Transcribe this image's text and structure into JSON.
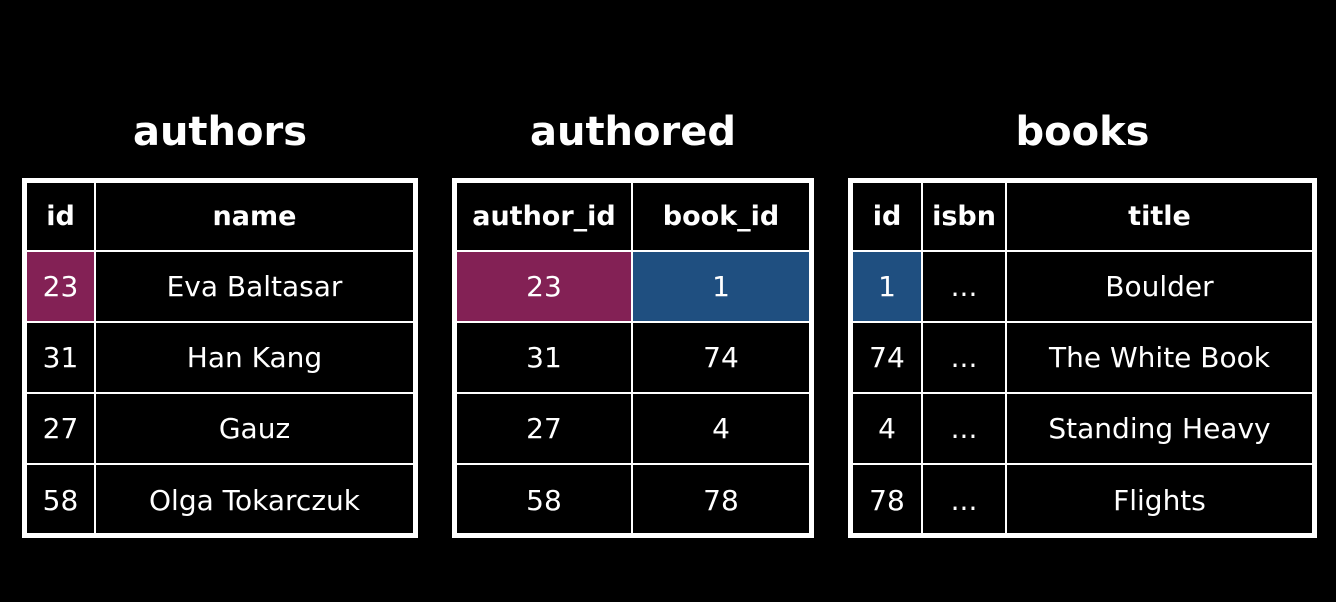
{
  "tables": {
    "authors": {
      "title": "authors",
      "headers": [
        "id",
        "name"
      ],
      "rows": [
        [
          "23",
          "Eva Baltasar"
        ],
        [
          "31",
          "Han Kang"
        ],
        [
          "27",
          "Gauz"
        ],
        [
          "58",
          "Olga Tokarczuk"
        ]
      ]
    },
    "authored": {
      "title": "authored",
      "headers": [
        "author_id",
        "book_id"
      ],
      "rows": [
        [
          "23",
          "1"
        ],
        [
          "31",
          "74"
        ],
        [
          "27",
          "4"
        ],
        [
          "58",
          "78"
        ]
      ]
    },
    "books": {
      "title": "books",
      "headers": [
        "id",
        "isbn",
        "title"
      ],
      "rows": [
        [
          "1",
          "...",
          "Boulder"
        ],
        [
          "74",
          "...",
          "The White Book"
        ],
        [
          "4",
          "...",
          "Standing Heavy"
        ],
        [
          "78",
          "...",
          "Flights"
        ]
      ]
    }
  },
  "colors": {
    "background": "#000000",
    "foreground": "#ffffff",
    "highlight_author": "#832155",
    "highlight_book": "#1f4f80"
  }
}
